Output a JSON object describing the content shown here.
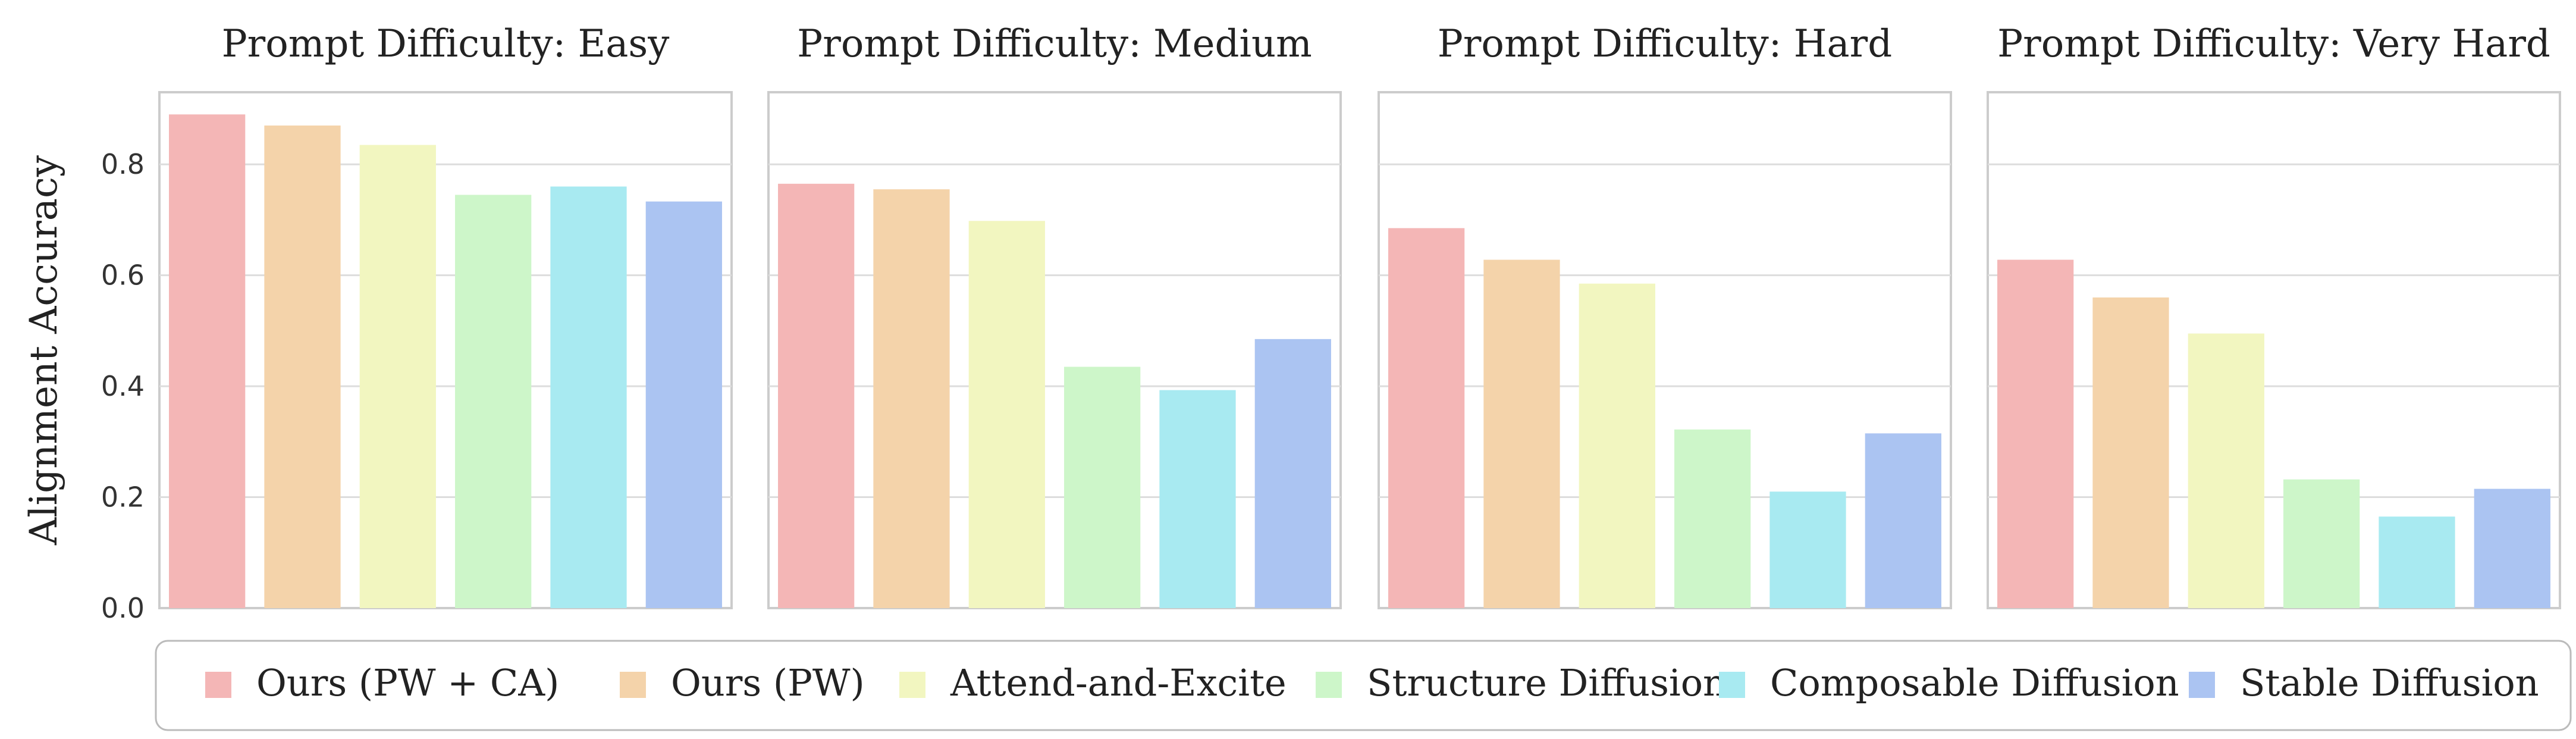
{
  "chart_data": {
    "type": "bar",
    "ylabel": "Alignment Accuracy",
    "ylim": [
      0,
      0.93
    ],
    "yticks": [
      "0.0",
      "0.2",
      "0.4",
      "0.6",
      "0.8"
    ],
    "grid": true,
    "legend_position": "bottom",
    "series": [
      {
        "name": "Ours (PW + CA)",
        "color": "#F4B6B6"
      },
      {
        "name": "Ours (PW)",
        "color": "#F4D3AA"
      },
      {
        "name": "Attend-and-Excite",
        "color": "#F2F6C0"
      },
      {
        "name": "Structure Diffusion",
        "color": "#CDF6C9"
      },
      {
        "name": "Composable Diffusion",
        "color": "#A8EAF1"
      },
      {
        "name": "Stable Diffusion",
        "color": "#ABC4F2"
      }
    ],
    "panels": [
      {
        "title": "Prompt Difficulty: Easy",
        "values": [
          0.89,
          0.87,
          0.835,
          0.745,
          0.76,
          0.733
        ]
      },
      {
        "title": "Prompt Difficulty: Medium",
        "values": [
          0.765,
          0.755,
          0.698,
          0.435,
          0.393,
          0.485
        ]
      },
      {
        "title": "Prompt Difficulty: Hard",
        "values": [
          0.685,
          0.628,
          0.585,
          0.322,
          0.21,
          0.315
        ]
      },
      {
        "title": "Prompt Difficulty: Very Hard",
        "values": [
          0.628,
          0.56,
          0.495,
          0.232,
          0.165,
          0.215
        ]
      }
    ]
  }
}
